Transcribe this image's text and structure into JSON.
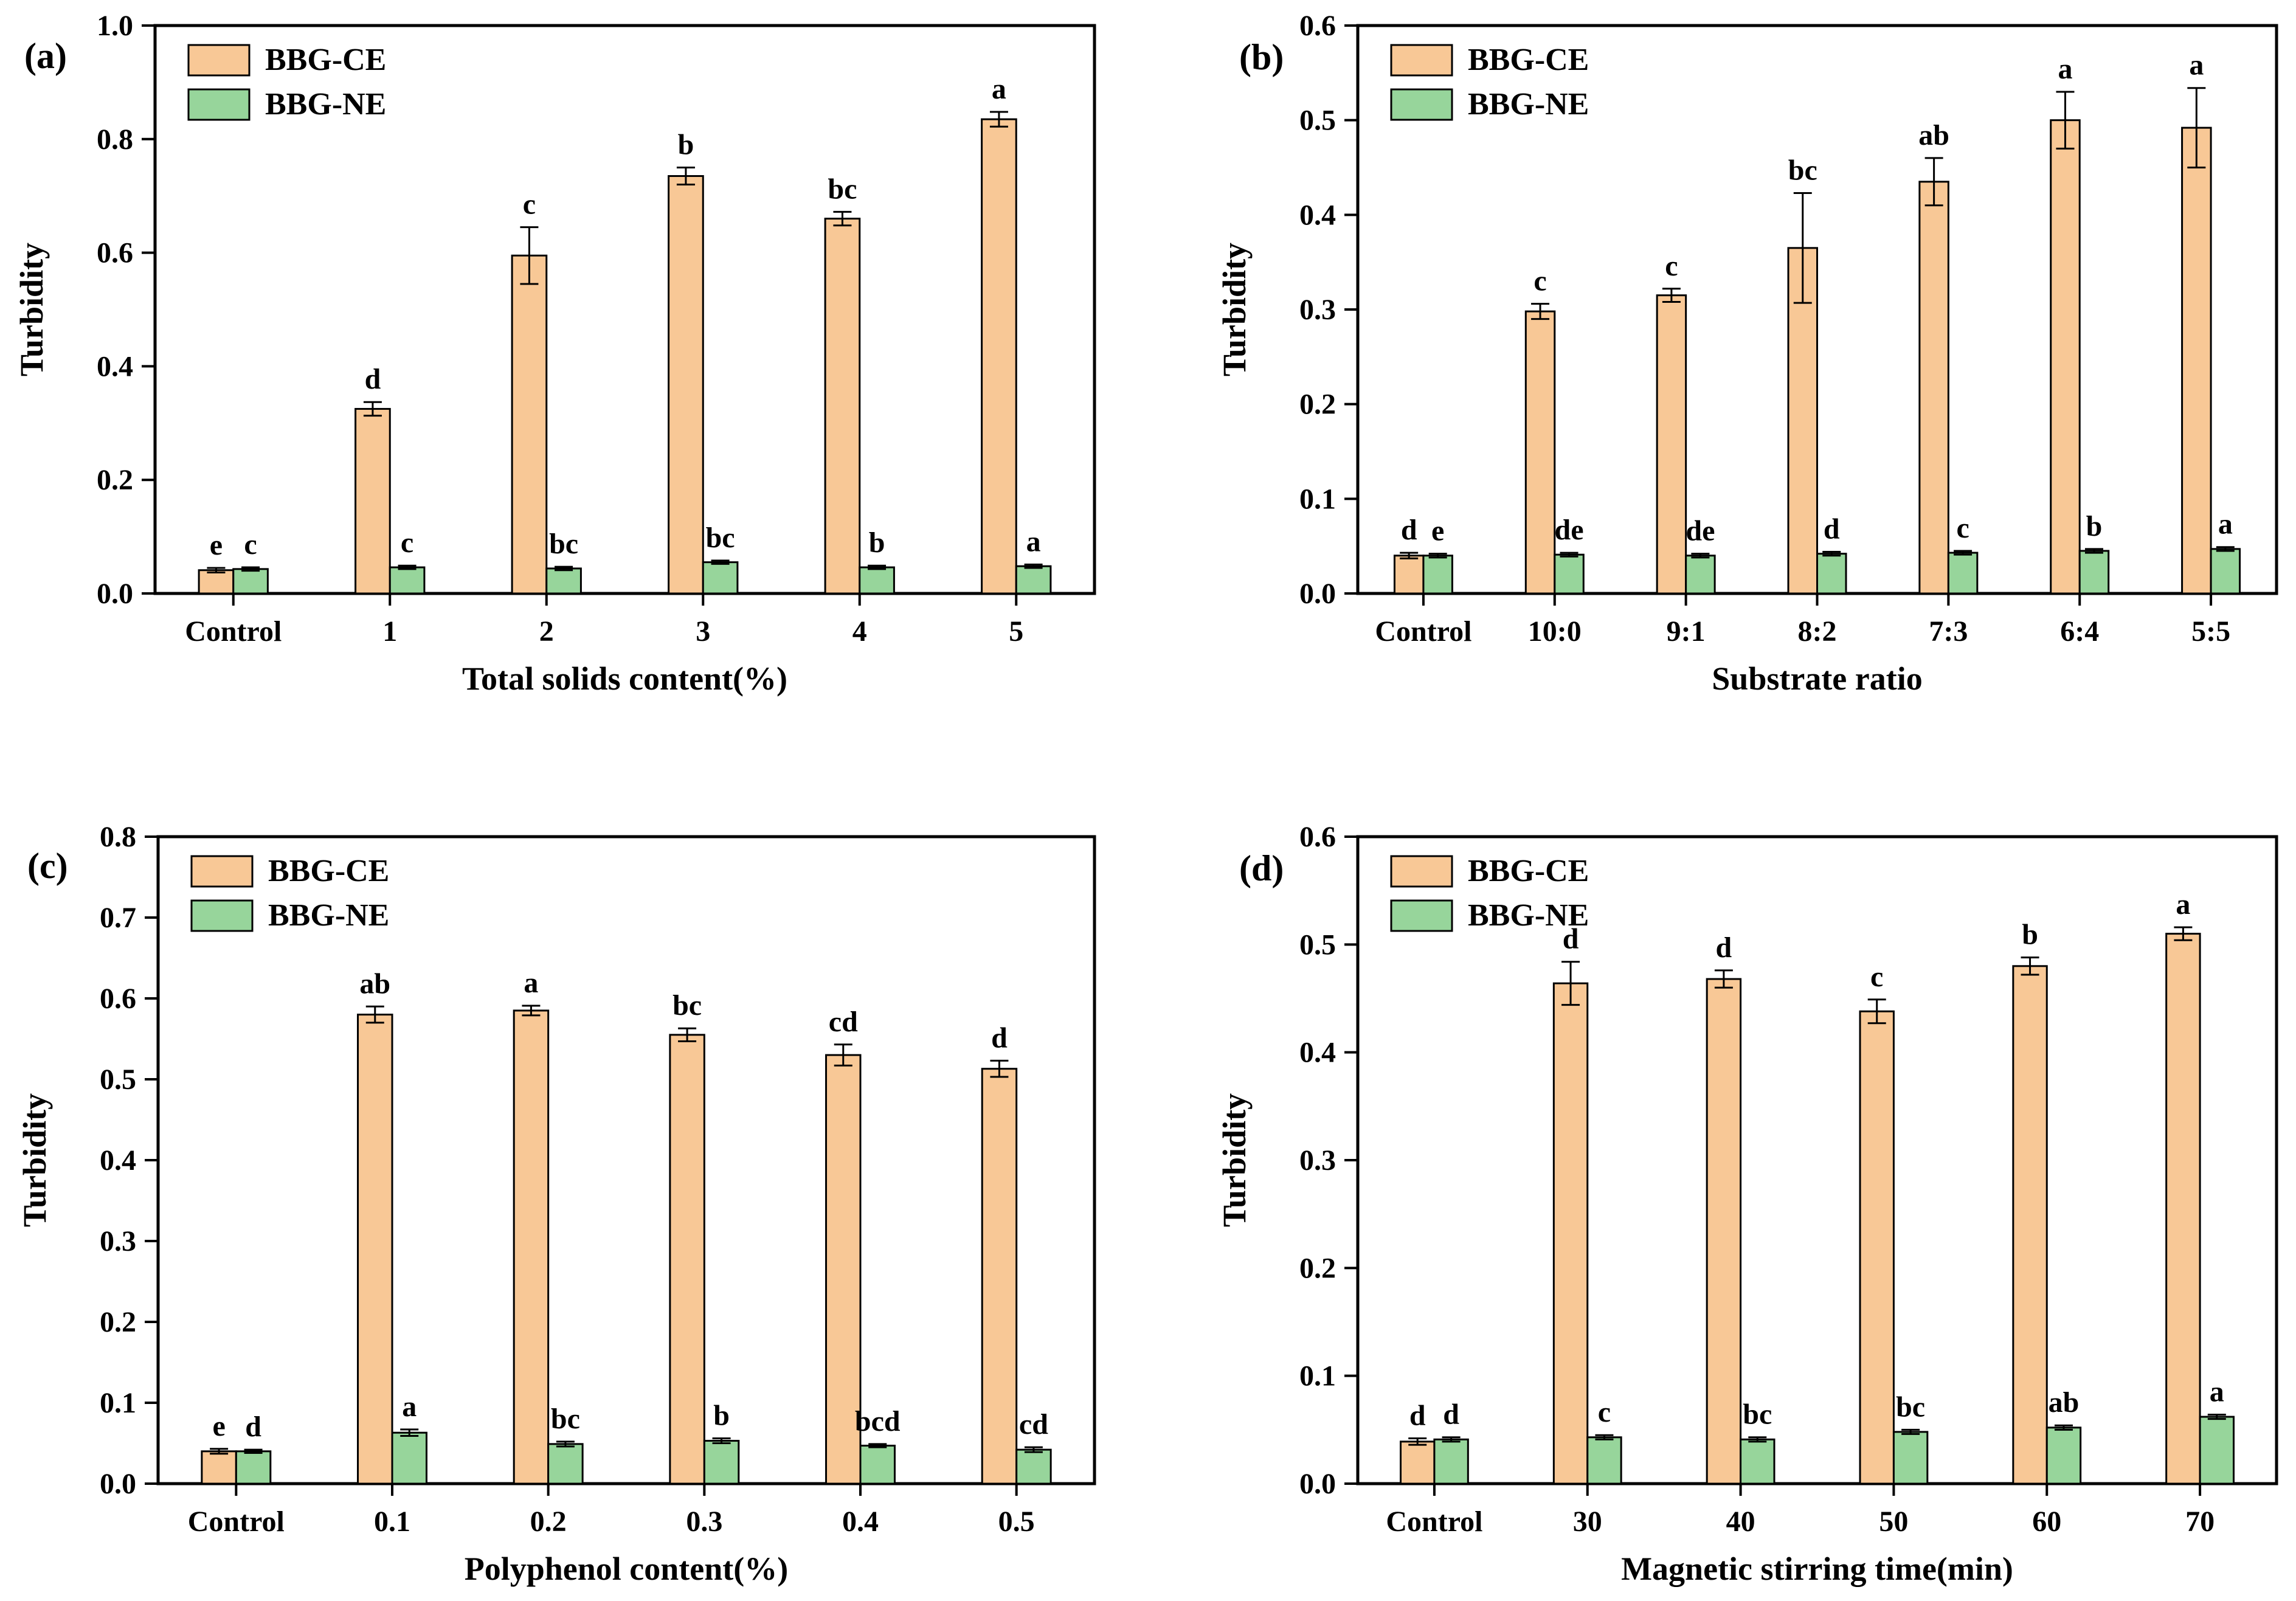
{
  "figure": {
    "series_labels": [
      "BBG-CE",
      "BBG-NE"
    ],
    "colors": {
      "ce_fill": "#F8C896",
      "ne_fill": "#97D59B",
      "bar_edge": "#000000",
      "axis": "#000000",
      "error_bar": "#000000",
      "text": "#000000",
      "background": "#FFFFFF"
    }
  },
  "chart_data": [
    {
      "type": "bar",
      "panel_letter": "(a)",
      "xlabel": "Total solids content(%)",
      "ylabel": "Turbidity",
      "ylim": [
        0,
        1.0
      ],
      "ytick_step": 0.2,
      "grid": false,
      "legend_position": "top-left",
      "legend_entries": [
        "BBG-CE",
        "BBG-NE"
      ],
      "categories": [
        "Control",
        "1",
        "2",
        "3",
        "4",
        "5"
      ],
      "series": [
        {
          "name": "BBG-CE",
          "values": [
            0.041,
            0.325,
            0.595,
            0.735,
            0.66,
            0.835
          ],
          "errors": [
            0.004,
            0.012,
            0.05,
            0.015,
            0.012,
            0.013
          ],
          "letters": [
            "e",
            "d",
            "c",
            "b",
            "bc",
            "a"
          ]
        },
        {
          "name": "BBG-NE",
          "values": [
            0.043,
            0.046,
            0.044,
            0.055,
            0.046,
            0.048
          ],
          "errors": [
            0.003,
            0.003,
            0.003,
            0.003,
            0.003,
            0.003
          ],
          "letters": [
            "c",
            "c",
            "bc",
            "bc",
            "b",
            "a"
          ]
        }
      ]
    },
    {
      "type": "bar",
      "panel_letter": "(b)",
      "xlabel": "Substrate ratio",
      "ylabel": "Turbidity",
      "ylim": [
        0,
        0.6
      ],
      "ytick_step": 0.1,
      "grid": false,
      "legend_position": "top-left",
      "legend_entries": [
        "BBG-CE",
        "BBG-NE"
      ],
      "categories": [
        "Control",
        "10:0",
        "9:1",
        "8:2",
        "7:3",
        "6:4",
        "5:5"
      ],
      "series": [
        {
          "name": "BBG-CE",
          "values": [
            0.04,
            0.298,
            0.315,
            0.365,
            0.435,
            0.5,
            0.492
          ],
          "errors": [
            0.003,
            0.008,
            0.007,
            0.058,
            0.025,
            0.03,
            0.042
          ],
          "letters": [
            "d",
            "c",
            "c",
            "bc",
            "ab",
            "a",
            "a"
          ]
        },
        {
          "name": "BBG-NE",
          "values": [
            0.04,
            0.041,
            0.04,
            0.042,
            0.043,
            0.045,
            0.047
          ],
          "errors": [
            0.002,
            0.002,
            0.002,
            0.002,
            0.002,
            0.002,
            0.002
          ],
          "letters": [
            "e",
            "de",
            "de",
            "d",
            "c",
            "b",
            "a"
          ]
        }
      ]
    },
    {
      "type": "bar",
      "panel_letter": "(c)",
      "xlabel": "Polyphenol content(%)",
      "ylabel": "Turbidity",
      "ylim": [
        0,
        0.8
      ],
      "ytick_step": 0.1,
      "grid": false,
      "legend_position": "top-left",
      "legend_entries": [
        "BBG-CE",
        "BBG-NE"
      ],
      "categories": [
        "Control",
        "0.1",
        "0.2",
        "0.3",
        "0.4",
        "0.5"
      ],
      "series": [
        {
          "name": "BBG-CE",
          "values": [
            0.04,
            0.58,
            0.585,
            0.555,
            0.53,
            0.513
          ],
          "errors": [
            0.003,
            0.01,
            0.006,
            0.008,
            0.013,
            0.01
          ],
          "letters": [
            "e",
            "ab",
            "a",
            "bc",
            "cd",
            "d"
          ]
        },
        {
          "name": "BBG-NE",
          "values": [
            0.04,
            0.063,
            0.049,
            0.053,
            0.047,
            0.042
          ],
          "errors": [
            0.002,
            0.004,
            0.003,
            0.003,
            0.002,
            0.003
          ],
          "letters": [
            "d",
            "a",
            "bc",
            "b",
            "bcd",
            "cd"
          ]
        }
      ]
    },
    {
      "type": "bar",
      "panel_letter": "(d)",
      "xlabel": "Magnetic stirring time(min)",
      "ylabel": "Turbidity",
      "ylim": [
        0,
        0.6
      ],
      "ytick_step": 0.1,
      "grid": false,
      "legend_position": "top-left",
      "legend_entries": [
        "BBG-CE",
        "BBG-NE"
      ],
      "categories": [
        "Control",
        "30",
        "40",
        "50",
        "60",
        "70"
      ],
      "series": [
        {
          "name": "BBG-CE",
          "values": [
            0.039,
            0.464,
            0.468,
            0.438,
            0.48,
            0.51
          ],
          "errors": [
            0.003,
            0.02,
            0.008,
            0.011,
            0.008,
            0.006
          ],
          "letters": [
            "d",
            "d",
            "d",
            "c",
            "b",
            "a"
          ]
        },
        {
          "name": "BBG-NE",
          "values": [
            0.041,
            0.043,
            0.041,
            0.048,
            0.052,
            0.062
          ],
          "errors": [
            0.002,
            0.002,
            0.002,
            0.002,
            0.002,
            0.002
          ],
          "letters": [
            "d",
            "c",
            "bc",
            "bc",
            "ab",
            "a"
          ]
        }
      ]
    }
  ]
}
